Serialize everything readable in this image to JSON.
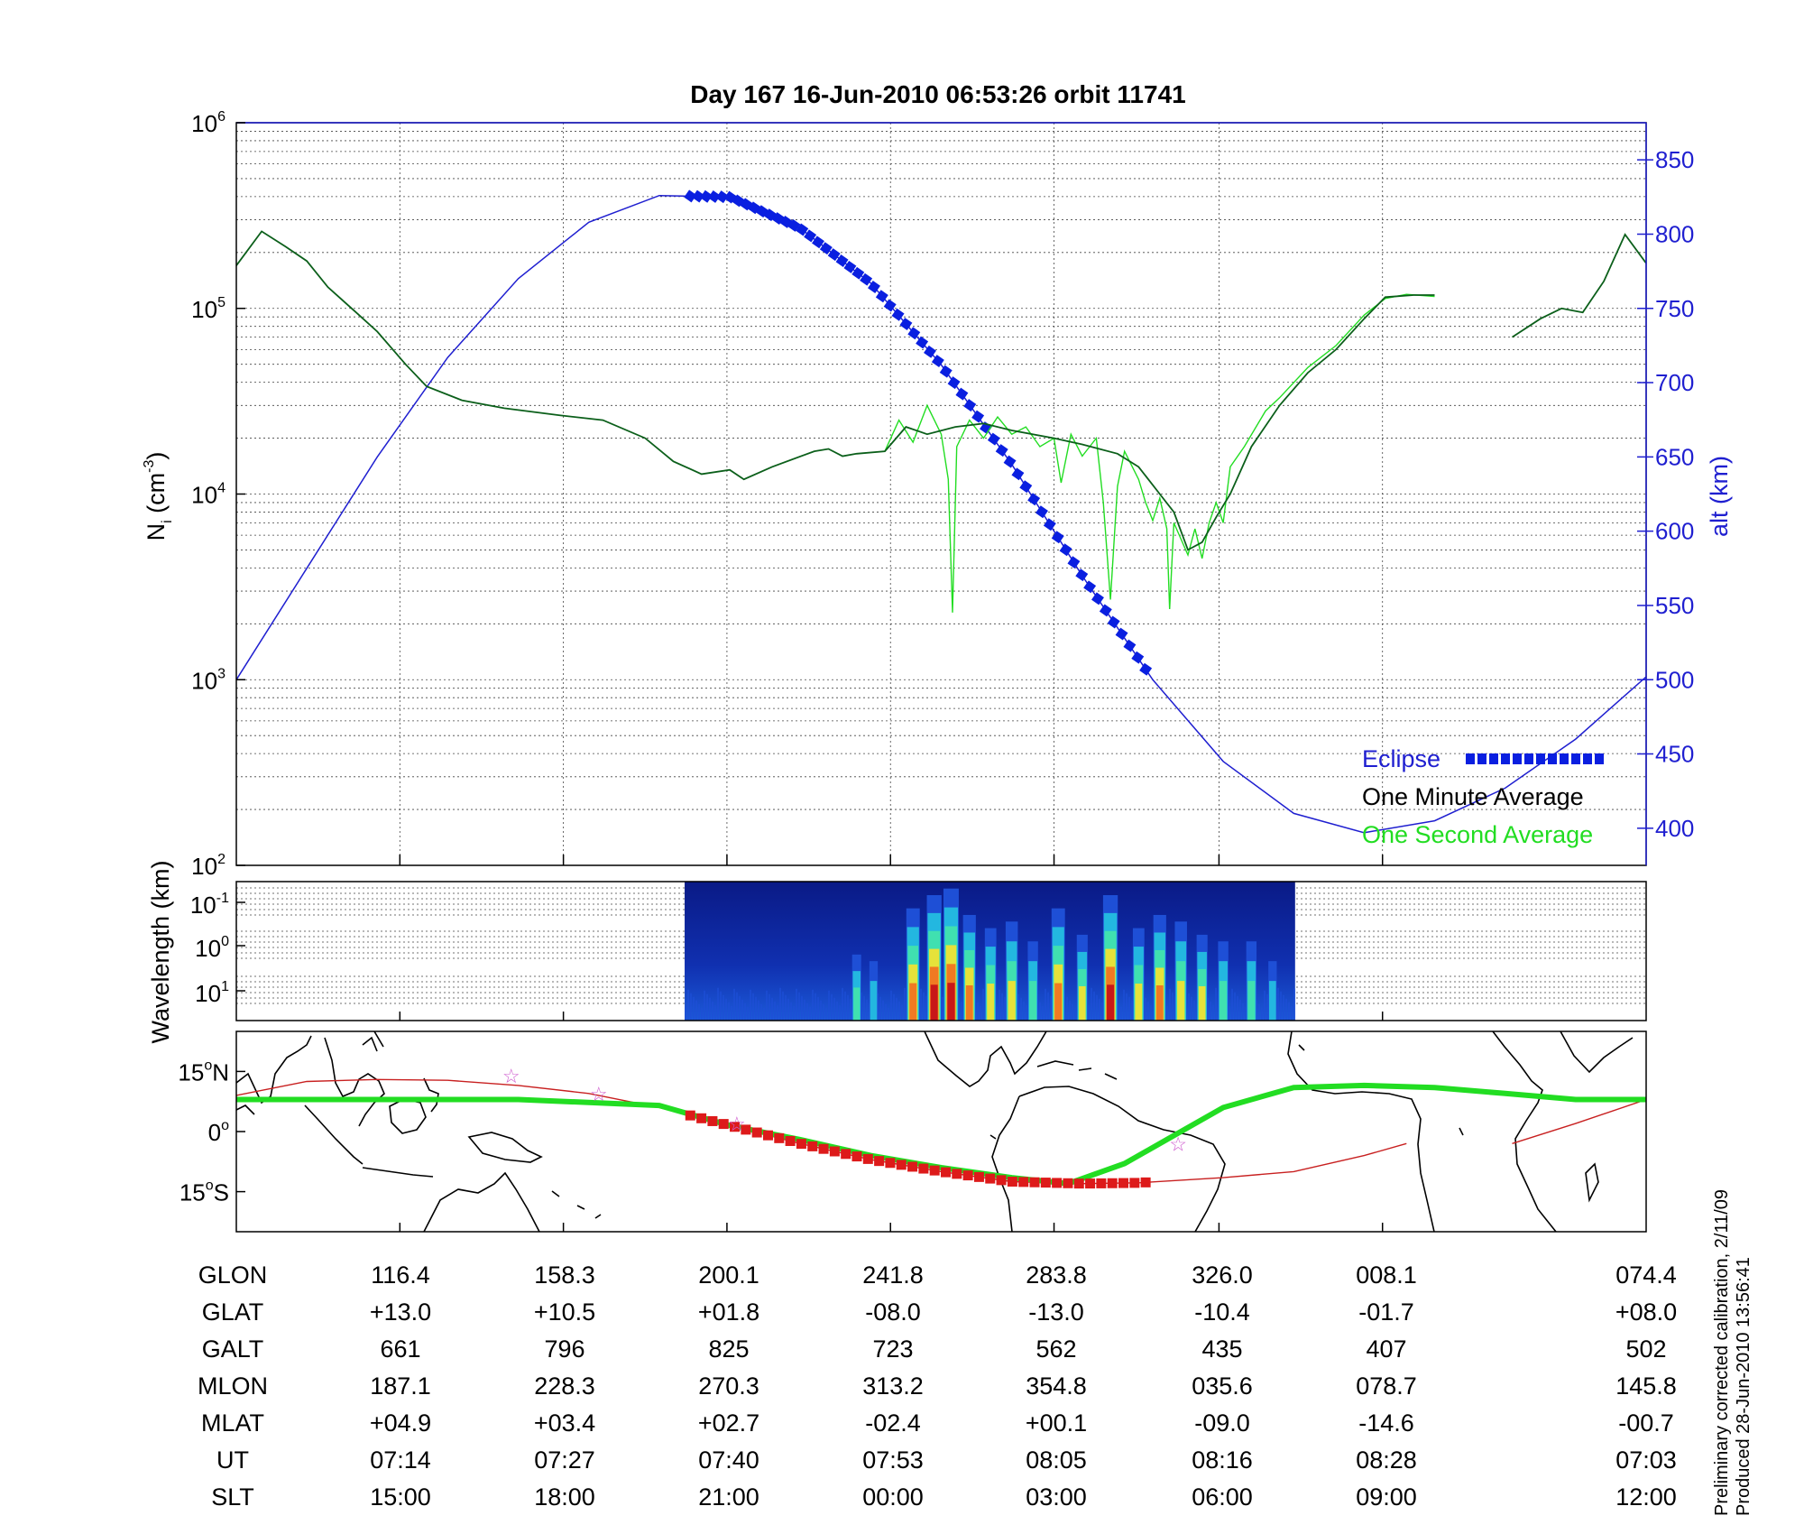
{
  "title": "Day 167  16-Jun-2010 06:53:26   orbit 11741",
  "side_note": {
    "line1": "Preliminary corrected calibration, 2/11/09",
    "line2": "Produced 28-Jun-2010 13:56:41"
  },
  "colors": {
    "altitude": "#1f1fd0",
    "eclipse": "#0a1fe0",
    "one_minute": "#0b5f1a",
    "one_second": "#22dd22",
    "orbit_track": "#c82020",
    "footpoint": "#22dd22",
    "star": "#d060d0"
  },
  "chart_data": [
    {
      "type": "line",
      "panel": "density",
      "ylabel": "N",
      "ylabel_sub": "i",
      "ylabel_unit": "(cm",
      "ylabel_unit_sup": "-3",
      "ylabel_unit_close": ")",
      "yscale": "log",
      "ylim": [
        100,
        1000000
      ],
      "y_ticks": [
        {
          "base": "10",
          "exp": "2",
          "value": 100
        },
        {
          "base": "10",
          "exp": "3",
          "value": 1000
        },
        {
          "base": "10",
          "exp": "4",
          "value": 10000
        },
        {
          "base": "10",
          "exp": "5",
          "value": 100000
        },
        {
          "base": "10",
          "exp": "6",
          "value": 1000000
        }
      ],
      "y2label": "alt (km)",
      "y2lim": [
        375,
        875
      ],
      "y2_ticks": [
        "400",
        "450",
        "500",
        "550",
        "600",
        "650",
        "700",
        "750",
        "800",
        "850"
      ],
      "x_domain": [
        0,
        1
      ],
      "x_ticks": [
        0.116,
        0.232,
        0.348,
        0.464,
        0.58,
        0.697,
        0.813
      ],
      "grid": true,
      "legend": {
        "placement": "bottom-right",
        "entries": [
          {
            "label": "Eclipse",
            "color": "#0a1fe0",
            "style": "thick-square"
          },
          {
            "label": "One Minute Average",
            "color": "#000000",
            "style": "none"
          },
          {
            "label": "One Second Average",
            "color": "#22dd22",
            "style": "none"
          }
        ]
      },
      "series": [
        {
          "name": "One Minute Average",
          "axis": "left",
          "points": [
            [
              0,
              170000
            ],
            [
              0.018,
              260000
            ],
            [
              0.035,
              215000
            ],
            [
              0.05,
              180000
            ],
            [
              0.065,
              130000
            ],
            [
              0.085,
              95000
            ],
            [
              0.1,
              75000
            ],
            [
              0.12,
              50000
            ],
            [
              0.135,
              38000
            ],
            [
              0.16,
              32000
            ],
            [
              0.19,
              29000
            ],
            [
              0.23,
              26500
            ],
            [
              0.26,
              25000
            ],
            [
              0.29,
              20000
            ],
            [
              0.31,
              15000
            ],
            [
              0.33,
              12800
            ],
            [
              0.35,
              13500
            ],
            [
              0.36,
              12000
            ],
            [
              0.38,
              14000
            ],
            [
              0.41,
              17000
            ],
            [
              0.42,
              17500
            ],
            [
              0.43,
              16000
            ],
            [
              0.44,
              16500
            ],
            [
              0.46,
              17000
            ],
            [
              0.475,
              23000
            ],
            [
              0.49,
              21000
            ],
            [
              0.51,
              23000
            ],
            [
              0.53,
              24000
            ],
            [
              0.55,
              22000
            ],
            [
              0.58,
              20000
            ],
            [
              0.6,
              18500
            ],
            [
              0.625,
              16500
            ],
            [
              0.64,
              14000
            ],
            [
              0.655,
              10000
            ],
            [
              0.665,
              8000
            ],
            [
              0.675,
              5000
            ],
            [
              0.685,
              5500
            ],
            [
              0.695,
              7500
            ],
            [
              0.705,
              10000
            ],
            [
              0.72,
              18000
            ],
            [
              0.74,
              30000
            ],
            [
              0.76,
              45000
            ],
            [
              0.78,
              60000
            ],
            [
              0.8,
              88000
            ],
            [
              0.815,
              115000
            ],
            [
              0.835,
              118000
            ],
            [
              0.85,
              118000
            ]
          ]
        },
        {
          "name": "One Minute Average (after gap)",
          "axis": "left",
          "points": [
            [
              0.905,
              70000
            ],
            [
              0.925,
              88000
            ],
            [
              0.94,
              100000
            ],
            [
              0.955,
              95000
            ],
            [
              0.97,
              140000
            ],
            [
              0.985,
              250000
            ],
            [
              1.0,
              175000
            ]
          ]
        },
        {
          "name": "One Second Average",
          "axis": "left",
          "points": [
            [
              0.46,
              17000
            ],
            [
              0.47,
              25000
            ],
            [
              0.48,
              19000
            ],
            [
              0.49,
              30000
            ],
            [
              0.5,
              21000
            ],
            [
              0.505,
              12000
            ],
            [
              0.508,
              2300
            ],
            [
              0.511,
              18000
            ],
            [
              0.52,
              25000
            ],
            [
              0.53,
              20000
            ],
            [
              0.54,
              26000
            ],
            [
              0.55,
              21000
            ],
            [
              0.56,
              23000
            ],
            [
              0.57,
              18000
            ],
            [
              0.58,
              20000
            ],
            [
              0.585,
              11500
            ],
            [
              0.592,
              21000
            ],
            [
              0.6,
              16000
            ],
            [
              0.61,
              20000
            ],
            [
              0.615,
              9000
            ],
            [
              0.62,
              2700
            ],
            [
              0.625,
              11000
            ],
            [
              0.63,
              17000
            ],
            [
              0.64,
              12000
            ],
            [
              0.645,
              9000
            ],
            [
              0.65,
              7200
            ],
            [
              0.655,
              9500
            ],
            [
              0.66,
              6500
            ],
            [
              0.662,
              2400
            ],
            [
              0.665,
              7000
            ],
            [
              0.675,
              4700
            ],
            [
              0.68,
              6500
            ],
            [
              0.685,
              4500
            ],
            [
              0.69,
              7000
            ],
            [
              0.695,
              9000
            ],
            [
              0.7,
              7000
            ],
            [
              0.705,
              14000
            ],
            [
              0.715,
              18000
            ],
            [
              0.73,
              28000
            ],
            [
              0.74,
              33000
            ],
            [
              0.76,
              48000
            ],
            [
              0.78,
              63000
            ],
            [
              0.8,
              92000
            ],
            [
              0.815,
              113000
            ],
            [
              0.83,
              119000
            ],
            [
              0.85,
              116000
            ]
          ]
        },
        {
          "name": "alt",
          "axis": "right",
          "points": [
            [
              0,
              500
            ],
            [
              0.05,
              575
            ],
            [
              0.1,
              650
            ],
            [
              0.15,
              717
            ],
            [
              0.2,
              770
            ],
            [
              0.25,
              808
            ],
            [
              0.3,
              826
            ],
            [
              0.35,
              825
            ],
            [
              0.4,
              804
            ],
            [
              0.45,
              767
            ],
            [
              0.5,
              712
            ],
            [
              0.55,
              645
            ],
            [
              0.6,
              570
            ],
            [
              0.65,
              500
            ],
            [
              0.7,
              445
            ],
            [
              0.75,
              410
            ],
            [
              0.8,
              397
            ],
            [
              0.85,
              405
            ],
            [
              0.9,
              427
            ],
            [
              0.95,
              460
            ],
            [
              1.0,
              502
            ]
          ]
        },
        {
          "name": "Eclipse",
          "axis": "right",
          "x_range": [
            0.322,
            0.645
          ]
        }
      ]
    },
    {
      "type": "heatmap",
      "panel": "spectrogram",
      "ylabel": "Wavelength (km)",
      "yscale": "log",
      "y_ticks": [
        {
          "base": "10",
          "exp": "-1"
        },
        {
          "base": "10",
          "exp": "0"
        },
        {
          "base": "10",
          "exp": "1"
        }
      ],
      "x_range": [
        0.318,
        0.751
      ],
      "colormap": [
        "#0a1f8c",
        "#1e4fd6",
        "#23b7e0",
        "#40e0b0",
        "#e6e23a",
        "#f07a22",
        "#c81818"
      ],
      "bursts": [
        {
          "x": 0.44,
          "intensity": 0.5
        },
        {
          "x": 0.452,
          "intensity": 0.45
        },
        {
          "x": 0.48,
          "intensity": 0.85
        },
        {
          "x": 0.495,
          "intensity": 0.95
        },
        {
          "x": 0.507,
          "intensity": 1.0
        },
        {
          "x": 0.52,
          "intensity": 0.8
        },
        {
          "x": 0.535,
          "intensity": 0.7
        },
        {
          "x": 0.55,
          "intensity": 0.75
        },
        {
          "x": 0.565,
          "intensity": 0.6
        },
        {
          "x": 0.583,
          "intensity": 0.85
        },
        {
          "x": 0.6,
          "intensity": 0.65
        },
        {
          "x": 0.62,
          "intensity": 0.95
        },
        {
          "x": 0.64,
          "intensity": 0.7
        },
        {
          "x": 0.655,
          "intensity": 0.8
        },
        {
          "x": 0.67,
          "intensity": 0.75
        },
        {
          "x": 0.685,
          "intensity": 0.65
        },
        {
          "x": 0.7,
          "intensity": 0.6
        },
        {
          "x": 0.72,
          "intensity": 0.6
        },
        {
          "x": 0.735,
          "intensity": 0.45
        }
      ]
    },
    {
      "type": "line",
      "panel": "map",
      "y_ticks": [
        {
          "label": "15",
          "deg": "o",
          "hemi": "N",
          "lat": 15
        },
        {
          "label": "0",
          "deg": "o",
          "hemi": "",
          "lat": 0
        },
        {
          "label": "15",
          "deg": "o",
          "hemi": "S",
          "lat": -15
        }
      ],
      "ylim": [
        -25,
        25
      ],
      "series": [
        {
          "name": "orbit track",
          "points": [
            [
              0,
              9
            ],
            [
              0.05,
              12.5
            ],
            [
              0.1,
              13
            ],
            [
              0.15,
              12.8
            ],
            [
              0.2,
              11.5
            ],
            [
              0.25,
              9.5
            ],
            [
              0.3,
              6
            ],
            [
              0.35,
              1.5
            ],
            [
              0.4,
              -3
            ],
            [
              0.45,
              -7
            ],
            [
              0.5,
              -10
            ],
            [
              0.55,
              -12.5
            ],
            [
              0.6,
              -13
            ],
            [
              0.64,
              -12.8
            ],
            [
              0.7,
              -11.5
            ],
            [
              0.75,
              -10
            ],
            [
              0.8,
              -6
            ],
            [
              0.83,
              -3
            ]
          ]
        },
        {
          "name": "orbit track (east)",
          "points": [
            [
              0.905,
              -3
            ],
            [
              0.95,
              2
            ],
            [
              1.0,
              8
            ]
          ]
        },
        {
          "name": "magnetic footpoint",
          "points": [
            [
              0,
              8
            ],
            [
              0.1,
              8
            ],
            [
              0.2,
              8
            ],
            [
              0.3,
              6.5
            ],
            [
              0.35,
              1.5
            ],
            [
              0.4,
              -2
            ],
            [
              0.45,
              -6
            ],
            [
              0.5,
              -9
            ],
            [
              0.55,
              -11.5
            ],
            [
              0.59,
              -13
            ],
            [
              0.63,
              -8
            ],
            [
              0.66,
              -2
            ],
            [
              0.7,
              6
            ],
            [
              0.75,
              11
            ],
            [
              0.8,
              11.5
            ],
            [
              0.85,
              11
            ],
            [
              0.9,
              9.5
            ],
            [
              0.95,
              8
            ],
            [
              1.0,
              8
            ]
          ]
        },
        {
          "name": "eclipse track",
          "x_range": [
            0.322,
            0.645
          ]
        }
      ],
      "stars": [
        [
          0.195,
          14
        ],
        [
          0.257,
          9.5
        ],
        [
          0.355,
          2
        ],
        [
          0.668,
          -3
        ]
      ]
    }
  ],
  "table": {
    "rows": [
      {
        "label": "GLON",
        "values": [
          "116.4",
          "158.3",
          "200.1",
          "241.8",
          "283.8",
          "326.0",
          "008.1",
          "074.4"
        ]
      },
      {
        "label": "GLAT",
        "values": [
          "+13.0",
          "+10.5",
          "+01.8",
          "-08.0",
          "-13.0",
          "-10.4",
          "-01.7",
          "+08.0"
        ]
      },
      {
        "label": "GALT",
        "values": [
          "661",
          "796",
          "825",
          "723",
          "562",
          "435",
          "407",
          "502"
        ]
      },
      {
        "label": "MLON",
        "values": [
          "187.1",
          "228.3",
          "270.3",
          "313.2",
          "354.8",
          "035.6",
          "078.7",
          "145.8"
        ]
      },
      {
        "label": "MLAT",
        "values": [
          "+04.9",
          "+03.4",
          "+02.7",
          "-02.4",
          "+00.1",
          "-09.0",
          "-14.6",
          "-00.7"
        ]
      },
      {
        "label": "UT",
        "values": [
          "07:14",
          "07:27",
          "07:40",
          "07:53",
          "08:05",
          "08:16",
          "08:28",
          "07:03"
        ]
      },
      {
        "label": "SLT",
        "values": [
          "15:00",
          "18:00",
          "21:00",
          "00:00",
          "03:00",
          "06:00",
          "09:00",
          "12:00"
        ]
      }
    ]
  }
}
